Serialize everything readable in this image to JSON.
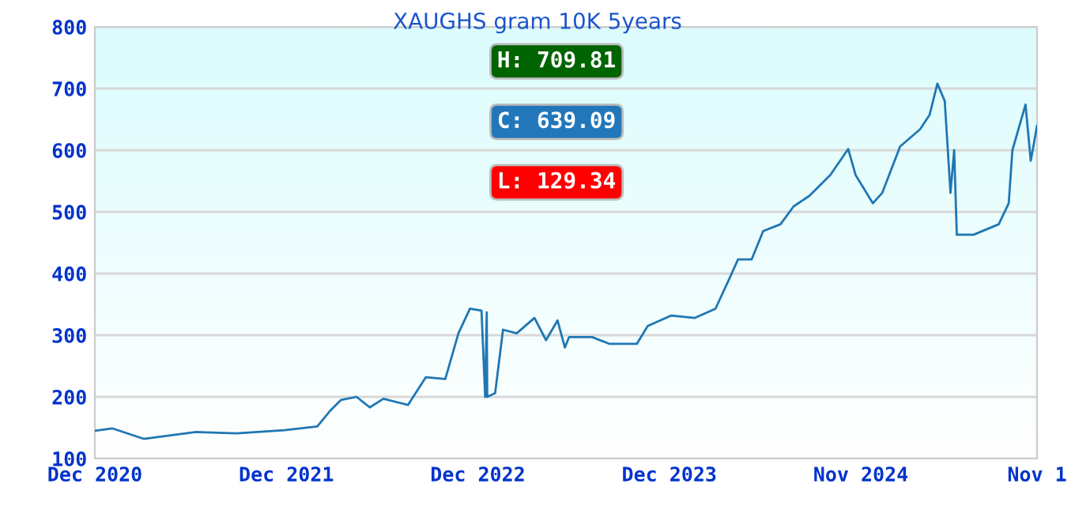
{
  "chart_data": {
    "type": "line",
    "title": "XAUGHS gram 10K 5years",
    "annotations": [
      "H: 709.81",
      "C: 639.09",
      "L: 129.34"
    ],
    "x": [
      "2020-12-01",
      "2021-01-03",
      "2021-03-04",
      "2021-06-12",
      "2021-08-28",
      "2021-11-27",
      "2022-01-29",
      "2022-02-23",
      "2022-03-15",
      "2022-04-14",
      "2022-05-09",
      "2022-06-04",
      "2022-07-21",
      "2022-08-24",
      "2022-09-30",
      "2022-10-25",
      "2022-11-16",
      "2022-12-08",
      "2022-12-15",
      "2022-12-18",
      "2022-12-19",
      "2023-01-03",
      "2023-01-18",
      "2023-02-13",
      "2023-03-19",
      "2023-04-10",
      "2023-05-02",
      "2023-05-16",
      "2023-05-24",
      "2023-07-07",
      "2023-08-09",
      "2023-09-30",
      "2023-10-21",
      "2023-12-05",
      "2024-01-18",
      "2024-02-27",
      "2024-03-23",
      "2024-04-10",
      "2024-05-06",
      "2024-05-28",
      "2024-06-30",
      "2024-07-25",
      "2024-08-24",
      "2024-10-03",
      "2024-11-06",
      "2024-11-20",
      "2024-12-23",
      "2025-01-10",
      "2025-02-13",
      "2025-03-23",
      "2025-04-10",
      "2025-04-25",
      "2025-05-09",
      "2025-05-20",
      "2025-05-27",
      "2025-06-01",
      "2025-07-03",
      "2025-08-20",
      "2025-09-08",
      "2025-09-15",
      "2025-10-10",
      "2025-10-20",
      "2025-10-26",
      "2025-11-01"
    ],
    "series": [
      {
        "color": "#1f77b4",
        "values": [
          145,
          149,
          132,
          143,
          141,
          146,
          152,
          178,
          195,
          200,
          183,
          197,
          187,
          232,
          229,
          303,
          343,
          340,
          200,
          337,
          200,
          206,
          309,
          303,
          328,
          292,
          324,
          280,
          297,
          297,
          286,
          286,
          315,
          332,
          328,
          343,
          389,
          423,
          423,
          469,
          480,
          509,
          526,
          560,
          602,
          560,
          514,
          531,
          606,
          634,
          657,
          708,
          680,
          531,
          600,
          463,
          463,
          480,
          514,
          600,
          674,
          583,
          611,
          640
        ]
      }
    ],
    "xlim": [
      "2020-12-01",
      "2025-11-01"
    ],
    "xticks": [
      {
        "value": "2020-12-01",
        "label": "Dec 2020"
      },
      {
        "value": "2021-12-01",
        "label": "Dec 2021"
      },
      {
        "value": "2022-12-01",
        "label": "Dec 2022"
      },
      {
        "value": "2023-12-01",
        "label": "Dec 2023"
      },
      {
        "value": "2024-11-30",
        "label": "Nov 2024"
      },
      {
        "value": "2025-11-01",
        "label": "Nov 1"
      }
    ],
    "ylim": [
      100,
      800
    ],
    "yticks": [
      100,
      200,
      300,
      400,
      500,
      600,
      700,
      800
    ],
    "grid": "y",
    "legend": false,
    "marker": "none",
    "line_style": "solid"
  }
}
